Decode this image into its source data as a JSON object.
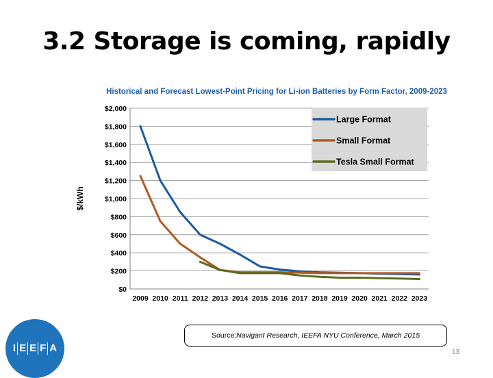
{
  "slide": {
    "title": "3.2  Storage is coming, rapidly",
    "source_label": "Source: ",
    "source_text": "Navigant Research, IEEFA NYU Conference, March 2015",
    "page_number": "13"
  },
  "logo": {
    "letters": [
      "I",
      "E",
      "E",
      "F",
      "A"
    ]
  },
  "colors": {
    "title_blue": "#1f5fa8",
    "large_format": "#1b5aa0",
    "small_format": "#b25a24",
    "tesla_small_format": "#5c6b1f",
    "legend_bg": "#d9d9d9",
    "logo_blue": "#1f74bc"
  },
  "chart_data": {
    "type": "line",
    "title": "Historical and Forecast Lowest-Point Pricing for Li-ion Batteries by Form Factor, 2009-2023",
    "xlabel": "",
    "ylabel": "$/kWh",
    "categories": [
      "2009",
      "2010",
      "2011",
      "2012",
      "2013",
      "2014",
      "2015",
      "2016",
      "2017",
      "2018",
      "2019",
      "2020",
      "2021",
      "2022",
      "2023"
    ],
    "y_ticks": [
      "$0",
      "$200",
      "$400",
      "$600",
      "$800",
      "$1,000",
      "$1,200",
      "$1,400",
      "$1,600",
      "$1,800",
      "$2,000"
    ],
    "ylim": [
      0,
      2000
    ],
    "grid": true,
    "legend_position": "top-right",
    "series": [
      {
        "name": "Large Format",
        "color": "#1b5aa0",
        "values": [
          1800,
          1200,
          850,
          600,
          500,
          380,
          250,
          215,
          195,
          185,
          180,
          175,
          170,
          165,
          160
        ]
      },
      {
        "name": "Small Format",
        "color": "#b25a24",
        "values": [
          1250,
          750,
          500,
          350,
          210,
          185,
          185,
          185,
          180,
          175,
          175,
          175,
          175,
          175,
          175
        ]
      },
      {
        "name": "Tesla Small Format",
        "color": "#5c6b1f",
        "values": [
          null,
          null,
          null,
          300,
          210,
          175,
          175,
          175,
          150,
          135,
          125,
          125,
          120,
          115,
          110
        ]
      }
    ]
  }
}
